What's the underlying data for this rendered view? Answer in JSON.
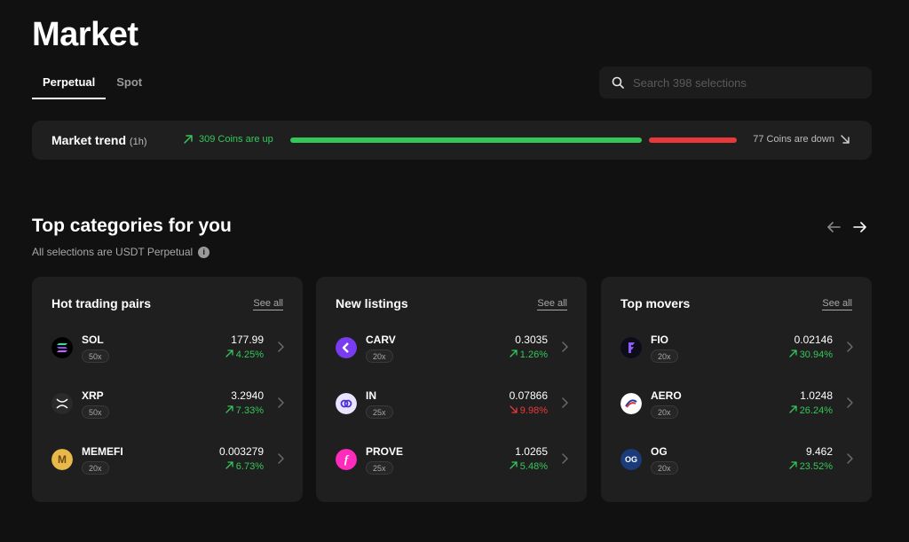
{
  "page": {
    "title": "Market"
  },
  "tabs": [
    {
      "label": "Perpetual",
      "active": true
    },
    {
      "label": "Spot",
      "active": false
    }
  ],
  "search": {
    "placeholder": "Search 398 selections",
    "value": ""
  },
  "trend": {
    "label": "Market trend",
    "period": "(1h)",
    "up_text": "309 Coins are up",
    "down_text": "77 Coins are down",
    "up_count": 309,
    "down_count": 77,
    "colors": {
      "up": "#35c759",
      "down": "#e8393a"
    }
  },
  "categories": {
    "title": "Top categories for you",
    "subtitle": "All selections are USDT Perpetual",
    "info_icon": "info-icon",
    "prev_icon": "arrow-left-icon",
    "next_icon": "arrow-right-icon"
  },
  "cards": [
    {
      "title": "Hot trading pairs",
      "see_all": "See all",
      "rows": [
        {
          "symbol": "SOL",
          "leverage": "50x",
          "price": "177.99",
          "change": "4.25%",
          "direction": "up",
          "icon": "sol-icon"
        },
        {
          "symbol": "XRP",
          "leverage": "50x",
          "price": "3.2940",
          "change": "7.33%",
          "direction": "up",
          "icon": "xrp-icon"
        },
        {
          "symbol": "MEMEFI",
          "leverage": "20x",
          "price": "0.003279",
          "change": "6.73%",
          "direction": "up",
          "icon": "memefi-icon"
        }
      ]
    },
    {
      "title": "New listings",
      "see_all": "See all",
      "rows": [
        {
          "symbol": "CARV",
          "leverage": "20x",
          "price": "0.3035",
          "change": "1.26%",
          "direction": "up",
          "icon": "carv-icon"
        },
        {
          "symbol": "IN",
          "leverage": "25x",
          "price": "0.07866",
          "change": "9.98%",
          "direction": "down",
          "icon": "in-icon"
        },
        {
          "symbol": "PROVE",
          "leverage": "25x",
          "price": "1.0265",
          "change": "5.48%",
          "direction": "up",
          "icon": "prove-icon"
        }
      ]
    },
    {
      "title": "Top movers",
      "see_all": "See all",
      "rows": [
        {
          "symbol": "FIO",
          "leverage": "20x",
          "price": "0.02146",
          "change": "30.94%",
          "direction": "up",
          "icon": "fio-icon"
        },
        {
          "symbol": "AERO",
          "leverage": "20x",
          "price": "1.0248",
          "change": "26.24%",
          "direction": "up",
          "icon": "aero-icon"
        },
        {
          "symbol": "OG",
          "leverage": "20x",
          "price": "9.462",
          "change": "23.52%",
          "direction": "up",
          "icon": "og-icon"
        }
      ]
    }
  ]
}
